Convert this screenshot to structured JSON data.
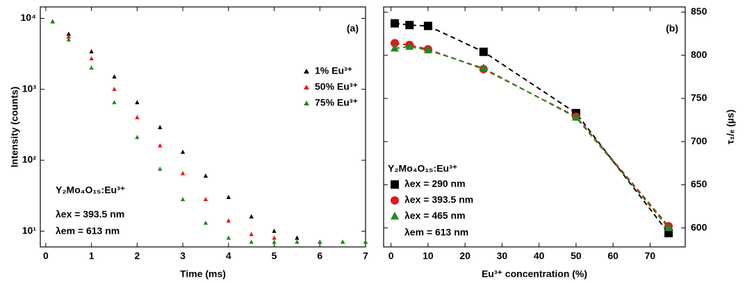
{
  "chart_data": [
    {
      "type": "scatter",
      "panel_label": "(a)",
      "x_label": "Time (ms)",
      "y_label": "Intensity (counts)",
      "log_y": true,
      "xlim": [
        -0.12,
        7
      ],
      "xticks": [
        0,
        1,
        2,
        3,
        4,
        5,
        6,
        7
      ],
      "ylim": [
        6,
        14500
      ],
      "yticks": [
        {
          "value": 10,
          "label": "10¹"
        },
        {
          "value": 100,
          "label": "10²"
        },
        {
          "value": 1000,
          "label": "10³"
        },
        {
          "value": 10000,
          "label": "10⁴"
        }
      ],
      "annotations": [
        "Y₂Mo₄O₁₅:Eu³⁺",
        "λex = 393.5 nm",
        "λem = 613 nm"
      ],
      "x": [
        0.15,
        0.5,
        1,
        1.5,
        2,
        2.5,
        3,
        3.5,
        4,
        4.5,
        5,
        5.5,
        6,
        6.5,
        7
      ],
      "series": [
        {
          "name": "1% Eu³⁺",
          "color": "#000000",
          "values": [
            9000,
            6000,
            3400,
            1500,
            650,
            290,
            130,
            60,
            30,
            16,
            10,
            8,
            7,
            7,
            7
          ]
        },
        {
          "name": "50% Eu³⁺",
          "color": "#e8141b",
          "values": [
            9000,
            5500,
            2700,
            1000,
            400,
            160,
            65,
            28,
            14,
            9,
            8,
            7,
            7,
            7,
            7
          ]
        },
        {
          "name": "75% Eu³⁺",
          "color": "#1f8a1f",
          "values": [
            9000,
            5000,
            2000,
            650,
            210,
            75,
            28,
            13,
            8,
            7,
            7,
            7,
            7,
            7,
            7
          ]
        }
      ]
    },
    {
      "type": "line",
      "panel_label": "(b)",
      "x_label": "Eu³⁺ concentration (%)",
      "y_label": "τ₁/ₑ (µs)",
      "y_axis_side": "right",
      "xlim": [
        -2,
        79.5
      ],
      "xticks": [
        0,
        10,
        20,
        30,
        40,
        50,
        60,
        70
      ],
      "ylim": [
        578,
        856
      ],
      "yticks": [
        600,
        650,
        700,
        750,
        800,
        850
      ],
      "annotations": [
        "Y₂Mo₄O₁₅:Eu³⁺",
        "λem = 613 nm"
      ],
      "x": [
        1,
        5,
        10,
        25,
        50,
        75
      ],
      "series": [
        {
          "name": "λex = 290 nm",
          "color": "#000000",
          "marker": "square",
          "values": [
            837,
            835,
            834,
            804,
            733,
            594
          ]
        },
        {
          "name": "λex = 393.5 nm",
          "color": "#e8141b",
          "marker": "circle",
          "values": [
            814,
            812,
            807,
            784,
            729,
            602
          ]
        },
        {
          "name": "λex = 465 nm",
          "color": "#1f8a1f",
          "marker": "triangle",
          "values": [
            808,
            810,
            806,
            785,
            728,
            600
          ]
        }
      ]
    }
  ]
}
